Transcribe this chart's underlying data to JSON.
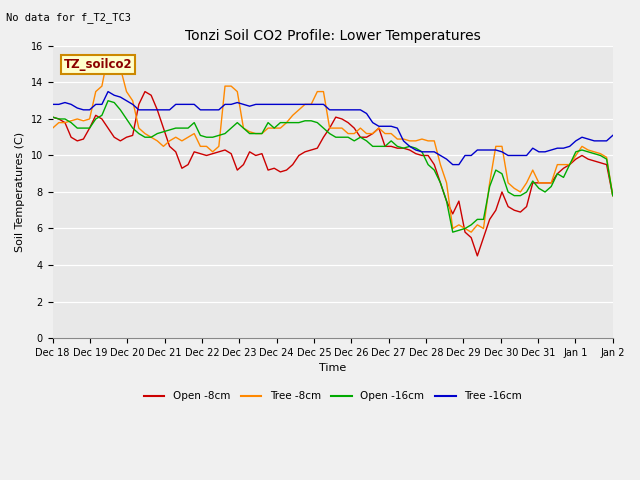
{
  "title": "Tonzi Soil CO2 Profile: Lower Temperatures",
  "subtitle": "No data for f_T2_TC3",
  "xlabel": "Time",
  "ylabel": "Soil Temperatures (C)",
  "legend_label": "TZ_soilco2",
  "ylim": [
    0,
    16
  ],
  "yticks": [
    0,
    2,
    4,
    6,
    8,
    10,
    12,
    14,
    16
  ],
  "xtick_labels": [
    "Dec 18",
    "Dec 19",
    "Dec 20",
    "Dec 21",
    "Dec 22",
    "Dec 23",
    "Dec 24",
    "Dec 25",
    "Dec 26",
    "Dec 27",
    "Dec 28",
    "Dec 29",
    "Dec 30",
    "Dec 31",
    "Jan 1",
    "Jan 2"
  ],
  "series": {
    "open_8cm": {
      "label": "Open -8cm",
      "color": "#cc0000",
      "data": [
        12.1,
        12.0,
        11.8,
        11.0,
        10.8,
        10.9,
        11.5,
        12.2,
        12.0,
        11.5,
        11.0,
        10.8,
        11.0,
        11.1,
        12.8,
        13.5,
        13.3,
        12.5,
        11.5,
        10.5,
        10.2,
        9.3,
        9.5,
        10.2,
        10.1,
        10.0,
        10.1,
        10.2,
        10.3,
        10.1,
        9.2,
        9.5,
        10.2,
        10.0,
        10.1,
        9.2,
        9.3,
        9.1,
        9.2,
        9.5,
        10.0,
        10.2,
        10.3,
        10.4,
        11.0,
        11.5,
        12.1,
        12.0,
        11.8,
        11.5,
        11.0,
        11.0,
        11.2,
        11.5,
        10.5,
        10.5,
        10.4,
        10.4,
        10.3,
        10.1,
        10.0,
        10.0,
        9.5,
        8.5,
        7.5,
        6.8,
        7.5,
        5.8,
        5.5,
        4.5,
        5.5,
        6.5,
        7.0,
        8.0,
        7.2,
        7.0,
        6.9,
        7.2,
        8.5,
        8.5,
        8.5,
        8.5,
        9.0,
        9.3,
        9.5,
        9.8,
        10.0,
        9.8,
        9.7,
        9.6,
        9.5,
        7.8
      ]
    },
    "tree_8cm": {
      "label": "Tree -8cm",
      "color": "#ff8800",
      "data": [
        11.5,
        11.8,
        11.8,
        11.9,
        12.0,
        11.9,
        12.0,
        13.5,
        13.8,
        15.5,
        15.5,
        14.8,
        13.5,
        13.0,
        11.5,
        11.2,
        11.0,
        10.8,
        10.5,
        10.8,
        11.0,
        10.8,
        11.0,
        11.2,
        10.5,
        10.5,
        10.2,
        10.5,
        13.8,
        13.8,
        13.5,
        11.5,
        11.3,
        11.2,
        11.2,
        11.5,
        11.5,
        11.5,
        11.8,
        12.2,
        12.5,
        12.8,
        12.8,
        13.5,
        13.5,
        11.5,
        11.5,
        11.5,
        11.2,
        11.2,
        11.5,
        11.2,
        11.2,
        11.5,
        11.2,
        11.2,
        10.9,
        10.9,
        10.8,
        10.8,
        10.9,
        10.8,
        10.8,
        9.5,
        8.5,
        6.0,
        6.2,
        6.0,
        5.8,
        6.2,
        6.0,
        8.5,
        10.5,
        10.5,
        8.5,
        8.2,
        8.0,
        8.5,
        9.2,
        8.5,
        8.5,
        8.5,
        9.5,
        9.5,
        9.5,
        10.0,
        10.5,
        10.3,
        10.2,
        10.1,
        9.9,
        7.8
      ]
    },
    "open_16cm": {
      "label": "Open -16cm",
      "color": "#00aa00",
      "data": [
        12.1,
        12.0,
        12.0,
        11.8,
        11.5,
        11.5,
        11.5,
        12.0,
        12.2,
        13.0,
        12.9,
        12.5,
        12.0,
        11.5,
        11.2,
        11.0,
        11.0,
        11.2,
        11.3,
        11.4,
        11.5,
        11.5,
        11.5,
        11.8,
        11.1,
        11.0,
        11.0,
        11.1,
        11.2,
        11.5,
        11.8,
        11.5,
        11.2,
        11.2,
        11.2,
        11.8,
        11.5,
        11.8,
        11.8,
        11.8,
        11.8,
        11.9,
        11.9,
        11.8,
        11.5,
        11.2,
        11.0,
        11.0,
        11.0,
        10.8,
        11.0,
        10.8,
        10.5,
        10.5,
        10.5,
        10.8,
        10.5,
        10.4,
        10.5,
        10.4,
        10.2,
        9.5,
        9.2,
        8.5,
        7.5,
        5.8,
        5.9,
        6.0,
        6.2,
        6.5,
        6.5,
        8.3,
        9.2,
        9.0,
        8.0,
        7.8,
        7.8,
        8.0,
        8.6,
        8.2,
        8.0,
        8.3,
        9.0,
        8.8,
        9.5,
        10.2,
        10.3,
        10.2,
        10.1,
        10.0,
        9.8,
        7.8
      ]
    },
    "tree_16cm": {
      "label": "Tree -16cm",
      "color": "#0000cc",
      "data": [
        12.8,
        12.8,
        12.9,
        12.8,
        12.6,
        12.5,
        12.5,
        12.8,
        12.8,
        13.5,
        13.3,
        13.2,
        13.0,
        12.8,
        12.5,
        12.5,
        12.5,
        12.5,
        12.5,
        12.5,
        12.8,
        12.8,
        12.8,
        12.8,
        12.5,
        12.5,
        12.5,
        12.5,
        12.8,
        12.8,
        12.9,
        12.8,
        12.7,
        12.8,
        12.8,
        12.8,
        12.8,
        12.8,
        12.8,
        12.8,
        12.8,
        12.8,
        12.8,
        12.8,
        12.8,
        12.5,
        12.5,
        12.5,
        12.5,
        12.5,
        12.5,
        12.3,
        11.8,
        11.6,
        11.6,
        11.6,
        11.5,
        10.8,
        10.5,
        10.3,
        10.2,
        10.2,
        10.2,
        10.0,
        9.8,
        9.5,
        9.5,
        10.0,
        10.0,
        10.3,
        10.3,
        10.3,
        10.3,
        10.2,
        10.0,
        10.0,
        10.0,
        10.0,
        10.4,
        10.2,
        10.2,
        10.3,
        10.4,
        10.4,
        10.5,
        10.8,
        11.0,
        10.9,
        10.8,
        10.8,
        10.8,
        11.1
      ]
    }
  },
  "bg_color": "#f0f0f0",
  "plot_bg_color": "#e8e8e8",
  "title_fontsize": 10,
  "axis_fontsize": 8,
  "tick_fontsize": 7
}
